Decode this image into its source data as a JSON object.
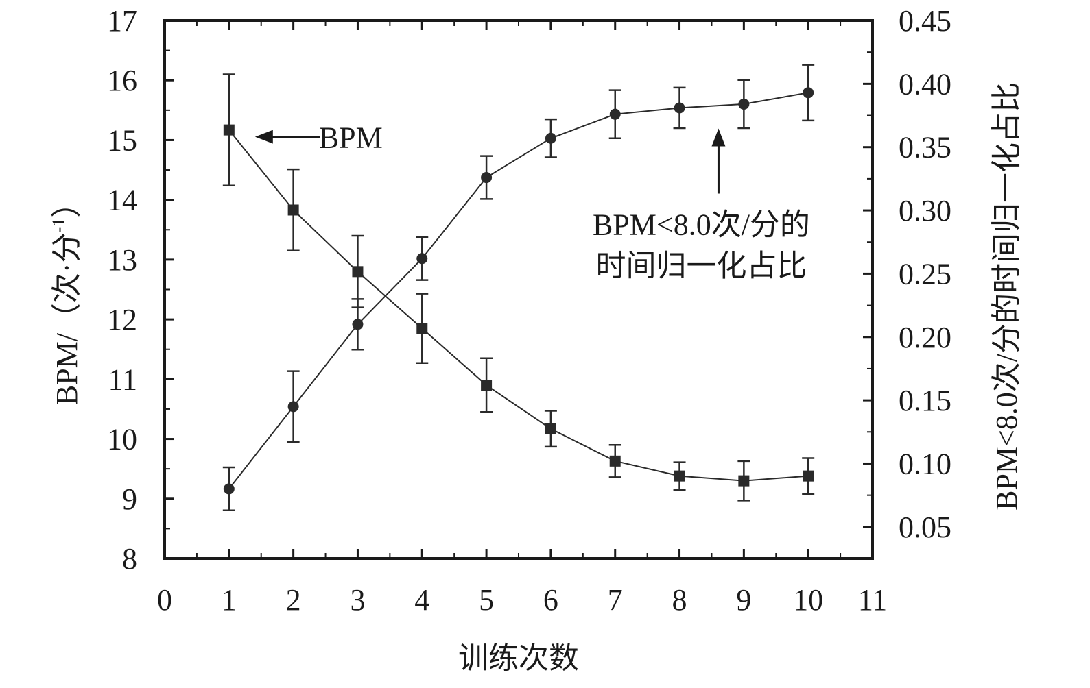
{
  "chart_data": {
    "type": "line",
    "xlabel": "训练次数",
    "ylabel_left": "BPM/（次·分",
    "ylabel_left_sup": "-1",
    "ylabel_left_close": "）",
    "ylabel_right": "BPM<8.0次/分的时间归一化占比",
    "xlim": [
      0,
      11
    ],
    "ylim_left": [
      8,
      17
    ],
    "ylim_right": [
      0.025,
      0.45
    ],
    "x_ticks": [
      "0",
      "1",
      "2",
      "3",
      "4",
      "5",
      "6",
      "7",
      "8",
      "9",
      "10",
      "11"
    ],
    "y_left_ticks": [
      "8",
      "9",
      "10",
      "11",
      "12",
      "13",
      "14",
      "15",
      "16",
      "17"
    ],
    "y_right_ticks": [
      "0.05",
      "0.10",
      "0.15",
      "0.20",
      "0.25",
      "0.30",
      "0.35",
      "0.40",
      "0.45"
    ],
    "legend": "none",
    "grid": false,
    "series": [
      {
        "axis": "left",
        "marker": "square",
        "color": "#2a2a2a",
        "x": [
          1,
          2,
          3,
          4,
          5,
          6,
          7,
          8,
          9,
          10
        ],
        "y": [
          15.17,
          13.83,
          12.8,
          11.85,
          10.9,
          10.17,
          9.63,
          9.38,
          9.3,
          9.38
        ],
        "err": [
          0.93,
          0.68,
          0.6,
          0.58,
          0.45,
          0.3,
          0.27,
          0.23,
          0.33,
          0.3
        ]
      },
      {
        "axis": "right",
        "marker": "circle",
        "color": "#2a2a2a",
        "x": [
          1,
          2,
          3,
          4,
          5,
          6,
          7,
          8,
          9,
          10
        ],
        "y": [
          0.08,
          0.145,
          0.21,
          0.262,
          0.326,
          0.357,
          0.376,
          0.381,
          0.384,
          0.393
        ],
        "err": [
          0.017,
          0.028,
          0.02,
          0.017,
          0.017,
          0.015,
          0.019,
          0.016,
          0.019,
          0.022
        ]
      }
    ],
    "annotations": [
      {
        "text": "BPM"
      },
      {
        "text_lines": [
          "BPM<8.0次/分的",
          "时间归一化占比"
        ]
      }
    ]
  }
}
